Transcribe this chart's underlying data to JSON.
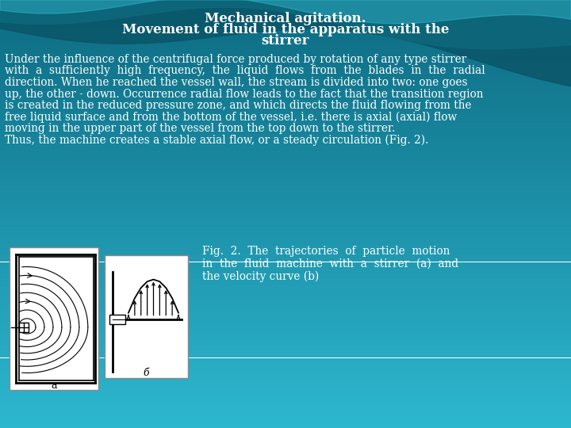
{
  "title_line1": "Mechanical agitation.",
  "title_line2": "Movement of fluid in the apparatus with the",
  "title_line3": "stirrer",
  "body_lines": [
    "Under the influence of the centrifugal force produced by rotation of any type stirrer",
    "with  a  sufficiently  high  frequency,  the  liquid  flows  from  the  blades  in  the  radial",
    "direction. When he reached the vessel wall, the stream is divided into two: one goes",
    "up, the other - down. Occurrence radial flow leads to the fact that the transition region",
    "is created in the reduced pressure zone, and which directs the fluid flowing from the",
    "free liquid surface and from the bottom of the vessel, i.e. there is axial (axial) flow",
    "moving in the upper part of the vessel from the top down to the stirrer.",
    "Thus, the machine creates a stable axial flow, or a steady circulation (Fig. 2)."
  ],
  "fig_caption_lines": [
    "Fig.  2.  The  trajectories  of  particle  motion",
    "in  the  fluid  machine  with  a  stirrer  (a)  and",
    "the velocity curve (b)"
  ],
  "title_color": "#ffffff",
  "body_color": "#ffffff",
  "title_fontsize": 12,
  "body_fontsize": 9.8,
  "caption_fontsize": 9.8,
  "bg_top": "#0d6b82",
  "bg_bottom": "#2db8d0",
  "wave1_color": "#0a5a6e",
  "wave2_color": "#0c6880",
  "wave3_color": "#3dcde0"
}
